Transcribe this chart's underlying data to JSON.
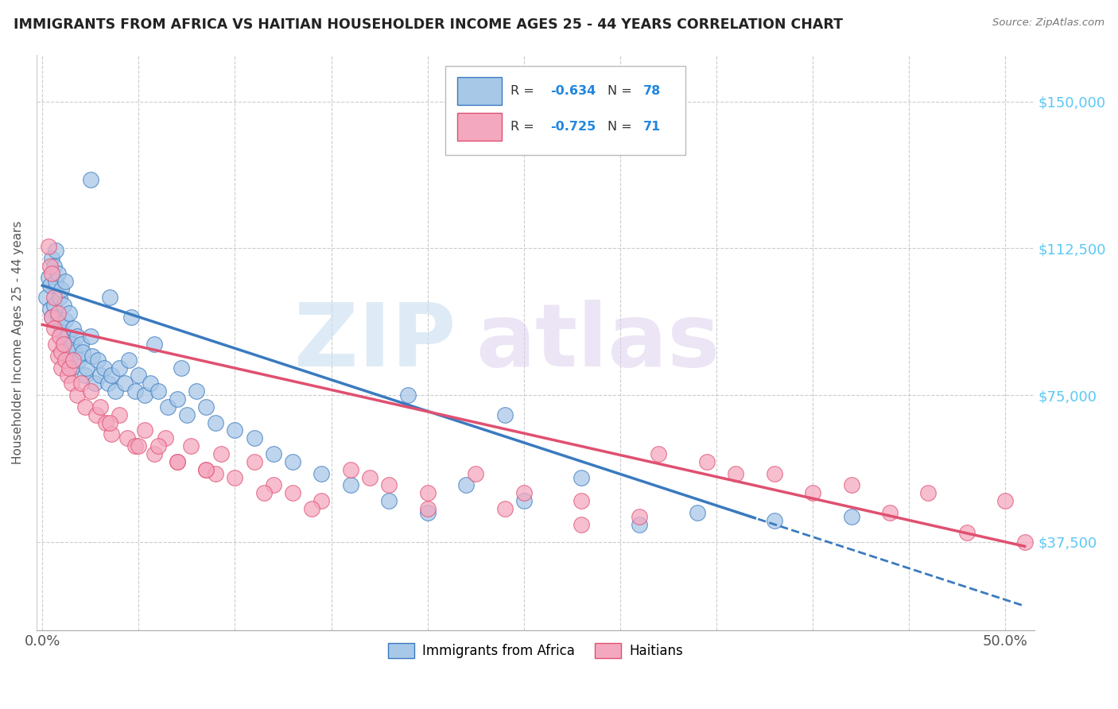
{
  "title": "IMMIGRANTS FROM AFRICA VS HAITIAN HOUSEHOLDER INCOME AGES 25 - 44 YEARS CORRELATION CHART",
  "source": "Source: ZipAtlas.com",
  "ylabel": "Householder Income Ages 25 - 44 years",
  "ytick_labels": [
    "$37,500",
    "$75,000",
    "$112,500",
    "$150,000"
  ],
  "ytick_values": [
    37500,
    75000,
    112500,
    150000
  ],
  "ymin": 15000,
  "ymax": 162000,
  "xmin": -0.003,
  "xmax": 0.515,
  "color_africa": "#a8c8e8",
  "color_haiti": "#f4a8c0",
  "color_africa_line": "#3a7abf",
  "color_haiti_line": "#e05070",
  "color_right_labels": "#5bc8f5",
  "legend_africa_r": "R = ",
  "legend_africa_rv": "-0.634",
  "legend_africa_n": "N = ",
  "legend_africa_nv": "78",
  "legend_haiti_r": "R = ",
  "legend_haiti_rv": "-0.725",
  "legend_haiti_n": "N = ",
  "legend_haiti_nv": "71",
  "africa_scatter_x": [
    0.002,
    0.003,
    0.004,
    0.004,
    0.005,
    0.005,
    0.006,
    0.006,
    0.007,
    0.007,
    0.008,
    0.008,
    0.009,
    0.009,
    0.01,
    0.01,
    0.011,
    0.011,
    0.012,
    0.012,
    0.013,
    0.013,
    0.014,
    0.015,
    0.015,
    0.016,
    0.017,
    0.018,
    0.019,
    0.02,
    0.021,
    0.022,
    0.023,
    0.025,
    0.026,
    0.027,
    0.029,
    0.03,
    0.032,
    0.034,
    0.036,
    0.038,
    0.04,
    0.043,
    0.045,
    0.048,
    0.05,
    0.053,
    0.056,
    0.06,
    0.065,
    0.07,
    0.075,
    0.08,
    0.085,
    0.09,
    0.1,
    0.11,
    0.12,
    0.13,
    0.145,
    0.16,
    0.18,
    0.2,
    0.22,
    0.25,
    0.28,
    0.31,
    0.34,
    0.38,
    0.42,
    0.19,
    0.24,
    0.025,
    0.035,
    0.046,
    0.058,
    0.072
  ],
  "africa_scatter_y": [
    100000,
    105000,
    103000,
    97000,
    110000,
    95000,
    108000,
    98000,
    112000,
    104000,
    106000,
    95000,
    100000,
    93000,
    102000,
    91000,
    98000,
    88000,
    94000,
    104000,
    90000,
    85000,
    96000,
    88000,
    82000,
    92000,
    86000,
    90000,
    84000,
    88000,
    86000,
    80000,
    82000,
    90000,
    85000,
    78000,
    84000,
    80000,
    82000,
    78000,
    80000,
    76000,
    82000,
    78000,
    84000,
    76000,
    80000,
    75000,
    78000,
    76000,
    72000,
    74000,
    70000,
    76000,
    72000,
    68000,
    66000,
    64000,
    60000,
    58000,
    55000,
    52000,
    48000,
    45000,
    52000,
    48000,
    54000,
    42000,
    45000,
    43000,
    44000,
    75000,
    70000,
    130000,
    100000,
    95000,
    88000,
    82000
  ],
  "haiti_scatter_x": [
    0.003,
    0.004,
    0.005,
    0.005,
    0.006,
    0.006,
    0.007,
    0.008,
    0.008,
    0.009,
    0.01,
    0.01,
    0.011,
    0.012,
    0.013,
    0.014,
    0.015,
    0.016,
    0.018,
    0.02,
    0.022,
    0.025,
    0.028,
    0.03,
    0.033,
    0.036,
    0.04,
    0.044,
    0.048,
    0.053,
    0.058,
    0.064,
    0.07,
    0.077,
    0.085,
    0.093,
    0.1,
    0.11,
    0.12,
    0.13,
    0.145,
    0.16,
    0.18,
    0.2,
    0.225,
    0.25,
    0.28,
    0.31,
    0.345,
    0.38,
    0.42,
    0.46,
    0.5,
    0.05,
    0.07,
    0.09,
    0.115,
    0.14,
    0.17,
    0.2,
    0.24,
    0.28,
    0.32,
    0.36,
    0.4,
    0.44,
    0.48,
    0.51,
    0.035,
    0.06,
    0.085
  ],
  "haiti_scatter_y": [
    113000,
    108000,
    95000,
    106000,
    100000,
    92000,
    88000,
    85000,
    96000,
    90000,
    86000,
    82000,
    88000,
    84000,
    80000,
    82000,
    78000,
    84000,
    75000,
    78000,
    72000,
    76000,
    70000,
    72000,
    68000,
    65000,
    70000,
    64000,
    62000,
    66000,
    60000,
    64000,
    58000,
    62000,
    56000,
    60000,
    54000,
    58000,
    52000,
    50000,
    48000,
    56000,
    52000,
    46000,
    55000,
    50000,
    48000,
    44000,
    58000,
    55000,
    52000,
    50000,
    48000,
    62000,
    58000,
    55000,
    50000,
    46000,
    54000,
    50000,
    46000,
    42000,
    60000,
    55000,
    50000,
    45000,
    40000,
    37500,
    68000,
    62000,
    56000
  ]
}
